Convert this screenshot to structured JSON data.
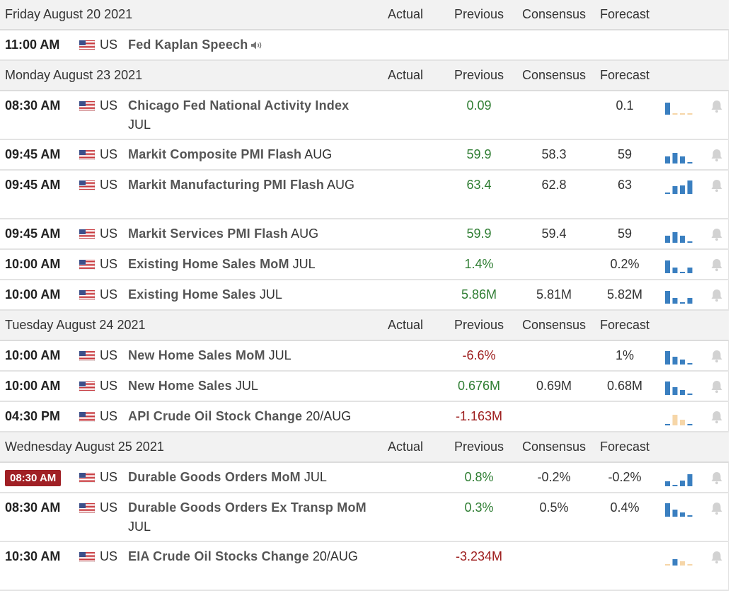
{
  "calendar": {
    "columns": {
      "actual": "Actual",
      "previous": "Previous",
      "consensus": "Consensus",
      "forecast": "Forecast"
    },
    "colors": {
      "positive": "#2e7d32",
      "negative": "#9c1b1b",
      "bar": "#3a7fc0",
      "bar_down": "#f6d6a8",
      "live_badge": "#a02025"
    },
    "rows": [
      {
        "type": "day",
        "label": "Friday August 20 2021"
      },
      {
        "type": "event",
        "time": "11:00 AM",
        "country": "US",
        "title": "Fed Kaplan Speech",
        "suffix": "",
        "speech": true,
        "previous": "",
        "consensus": "",
        "forecast": "",
        "alert": false
      },
      {
        "type": "day",
        "label": "Monday August 23 2021"
      },
      {
        "type": "event",
        "time": "08:30 AM",
        "country": "US",
        "title": "Chicago Fed National Activity Index",
        "suffix": "JUL",
        "wrap": true,
        "previous": "0.09",
        "prev_dir": "pos",
        "consensus": "",
        "forecast": "0.1",
        "spark": [
          0.85,
          0.1,
          0.1,
          0.1
        ],
        "spark_dir": [
          "up",
          "down",
          "down",
          "down"
        ],
        "alert": true
      },
      {
        "type": "event",
        "time": "09:45 AM",
        "country": "US",
        "title": "Markit Composite PMI Flash",
        "suffix": "AUG",
        "previous": "59.9",
        "prev_dir": "pos",
        "consensus": "58.3",
        "forecast": "59",
        "spark": [
          0.5,
          0.75,
          0.5,
          0.1
        ],
        "spark_dir": [
          "up",
          "up",
          "up",
          "up"
        ],
        "alert": true
      },
      {
        "type": "event",
        "time": "09:45 AM",
        "country": "US",
        "title": "Markit Manufacturing PMI Flash",
        "suffix": "AUG",
        "wrap": true,
        "previous": "63.4",
        "prev_dir": "pos",
        "consensus": "62.8",
        "forecast": "63",
        "spark": [
          0.1,
          0.55,
          0.6,
          0.95
        ],
        "spark_dir": [
          "up",
          "up",
          "up",
          "up"
        ],
        "alert": true
      },
      {
        "type": "event",
        "time": "09:45 AM",
        "country": "US",
        "title": "Markit Services PMI Flash",
        "suffix": "AUG",
        "previous": "59.9",
        "prev_dir": "pos",
        "consensus": "59.4",
        "forecast": "59",
        "spark": [
          0.5,
          0.75,
          0.5,
          0.1
        ],
        "spark_dir": [
          "up",
          "up",
          "up",
          "up"
        ],
        "alert": true
      },
      {
        "type": "event",
        "time": "10:00 AM",
        "country": "US",
        "title": "Existing Home Sales MoM",
        "suffix": "JUL",
        "previous": "1.4%",
        "prev_dir": "pos",
        "consensus": "",
        "forecast": "0.2%",
        "spark": [
          0.9,
          0.4,
          0.1,
          0.4
        ],
        "spark_dir": [
          "up",
          "up",
          "up",
          "up"
        ],
        "alert": true
      },
      {
        "type": "event",
        "time": "10:00 AM",
        "country": "US",
        "title": "Existing Home Sales",
        "suffix": "JUL",
        "previous": "5.86M",
        "prev_dir": "pos",
        "consensus": "5.81M",
        "forecast": "5.82M",
        "spark": [
          0.9,
          0.4,
          0.1,
          0.4
        ],
        "spark_dir": [
          "up",
          "up",
          "up",
          "up"
        ],
        "alert": true
      },
      {
        "type": "day",
        "label": "Tuesday August 24 2021"
      },
      {
        "type": "event",
        "time": "10:00 AM",
        "country": "US",
        "title": "New Home Sales MoM",
        "suffix": "JUL",
        "previous": "-6.6%",
        "prev_dir": "neg",
        "consensus": "",
        "forecast": "1%",
        "spark": [
          0.95,
          0.55,
          0.35,
          0.1
        ],
        "spark_dir": [
          "up",
          "up",
          "up",
          "up"
        ],
        "alert": true
      },
      {
        "type": "event",
        "time": "10:00 AM",
        "country": "US",
        "title": "New Home Sales",
        "suffix": "JUL",
        "previous": "0.676M",
        "prev_dir": "pos",
        "consensus": "0.69M",
        "forecast": "0.68M",
        "spark": [
          0.95,
          0.55,
          0.35,
          0.1
        ],
        "spark_dir": [
          "up",
          "up",
          "up",
          "up"
        ],
        "alert": true
      },
      {
        "type": "event",
        "time": "04:30 PM",
        "country": "US",
        "title": "API Crude Oil Stock Change",
        "suffix": "20/AUG",
        "previous": "-1.163M",
        "prev_dir": "neg",
        "consensus": "",
        "forecast": "",
        "spark": [
          0.1,
          0.75,
          0.4,
          0.1
        ],
        "spark_dir": [
          "up",
          "down",
          "down",
          "up"
        ],
        "alert": true
      },
      {
        "type": "day",
        "label": "Wednesday August 25 2021"
      },
      {
        "type": "event",
        "time": "08:30 AM",
        "live": true,
        "country": "US",
        "title": "Durable Goods Orders MoM",
        "suffix": "JUL",
        "previous": "0.8%",
        "prev_dir": "pos",
        "consensus": "-0.2%",
        "forecast": "-0.2%",
        "spark": [
          0.35,
          0.1,
          0.4,
          0.85
        ],
        "spark_dir": [
          "up",
          "up",
          "up",
          "up"
        ],
        "alert": true
      },
      {
        "type": "event",
        "time": "08:30 AM",
        "country": "US",
        "title": "Durable Goods Orders Ex Transp MoM",
        "suffix": "JUL",
        "wrap": true,
        "previous": "0.3%",
        "prev_dir": "pos",
        "consensus": "0.5%",
        "forecast": "0.4%",
        "spark": [
          0.95,
          0.5,
          0.3,
          0.1
        ],
        "spark_dir": [
          "up",
          "up",
          "up",
          "up"
        ],
        "alert": true
      },
      {
        "type": "event",
        "time": "10:30 AM",
        "country": "US",
        "title": "EIA Crude Oil Stocks Change",
        "suffix": "20/AUG",
        "wrap": true,
        "previous": "-3.234M",
        "prev_dir": "neg",
        "consensus": "",
        "forecast": "",
        "spark": [
          0.1,
          0.45,
          0.3,
          0.1
        ],
        "spark_dir": [
          "down",
          "up",
          "down",
          "down"
        ],
        "alert": true
      }
    ]
  }
}
